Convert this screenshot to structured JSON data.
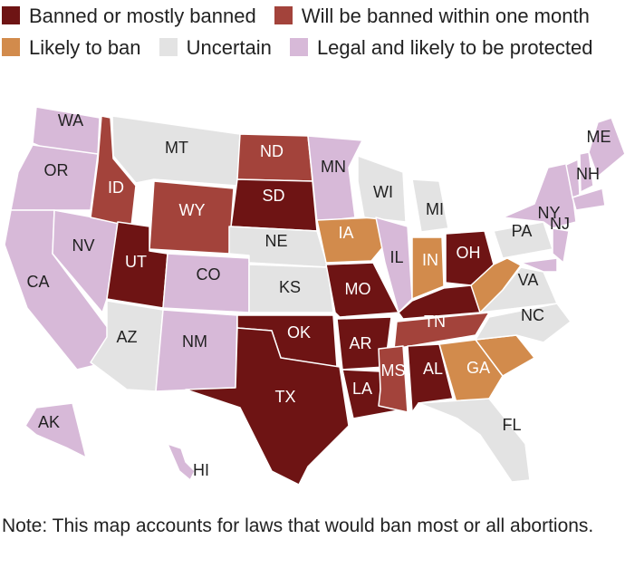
{
  "legend": [
    {
      "label": "Banned or mostly banned",
      "color": "#6e1414"
    },
    {
      "label": "Will be banned within one month",
      "color": "#a3433b"
    },
    {
      "label": "Likely to ban",
      "color": "#d28b4c"
    },
    {
      "label": "Uncertain",
      "color": "#e3e3e3"
    },
    {
      "label": "Legal and likely to be protected",
      "color": "#d7b9d8"
    }
  ],
  "states": [
    {
      "label": "WA",
      "status": 4
    },
    {
      "label": "OR",
      "status": 4
    },
    {
      "label": "CA",
      "status": 4
    },
    {
      "label": "NV",
      "status": 4
    },
    {
      "label": "ID",
      "status": 1
    },
    {
      "label": "MT",
      "status": 3
    },
    {
      "label": "WY",
      "status": 1
    },
    {
      "label": "UT",
      "status": 0
    },
    {
      "label": "AZ",
      "status": 3
    },
    {
      "label": "CO",
      "status": 4
    },
    {
      "label": "NM",
      "status": 4
    },
    {
      "label": "ND",
      "status": 1
    },
    {
      "label": "SD",
      "status": 0
    },
    {
      "label": "NE",
      "status": 3
    },
    {
      "label": "KS",
      "status": 3
    },
    {
      "label": "OK",
      "status": 0
    },
    {
      "label": "TX",
      "status": 0
    },
    {
      "label": "MN",
      "status": 4
    },
    {
      "label": "IA",
      "status": 2
    },
    {
      "label": "MO",
      "status": 0
    },
    {
      "label": "AR",
      "status": 0
    },
    {
      "label": "LA",
      "status": 0
    },
    {
      "label": "WI",
      "status": 3
    },
    {
      "label": "IL",
      "status": 4
    },
    {
      "label": "MI",
      "status": 3
    },
    {
      "label": "IN",
      "status": 2
    },
    {
      "label": "OH",
      "status": 0
    },
    {
      "label": null,
      "status": 0
    },
    {
      "label": "TN",
      "status": 1
    },
    {
      "label": "MS",
      "status": 1
    },
    {
      "label": "AL",
      "status": 0
    },
    {
      "label": "GA",
      "status": 2
    },
    {
      "label": null,
      "status": 2
    },
    {
      "label": "FL",
      "status": 3
    },
    {
      "label": "NC",
      "status": 3
    },
    {
      "label": "VA",
      "status": 3
    },
    {
      "label": null,
      "status": 2
    },
    {
      "label": "PA",
      "status": 3
    },
    {
      "label": "NY",
      "status": 4
    },
    {
      "label": "NJ",
      "status": 4
    },
    {
      "label": null,
      "status": 4
    },
    {
      "label": "NH",
      "status": 4
    },
    {
      "label": "ME",
      "status": 4
    },
    {
      "label": null,
      "status": 4
    },
    {
      "label": null,
      "status": 4
    },
    {
      "label": "AK",
      "status": 4
    },
    {
      "label": "HI",
      "status": 4
    }
  ],
  "note": "Note: This map accounts for laws that would ban most or all abortions."
}
